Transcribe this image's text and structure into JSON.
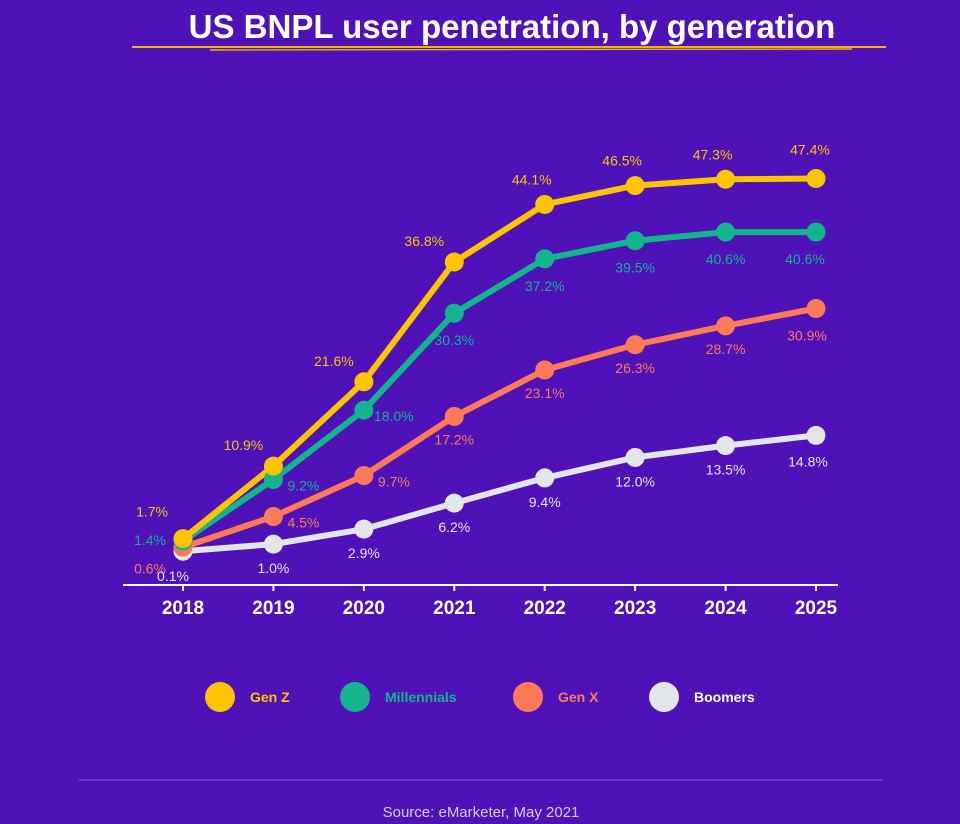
{
  "colors": {
    "background": "#4e12b8",
    "title_underline": "#f5b400",
    "axis": "#ffffff",
    "divider": "#7f5ad0"
  },
  "chart_data": {
    "type": "line",
    "title": "US BNPL user penetration, by generation",
    "x": [
      "2018",
      "2019",
      "2020",
      "2021",
      "2022",
      "2023",
      "2024",
      "2025"
    ],
    "ylim": [
      0,
      50
    ],
    "grid": false,
    "legend_position": "bottom",
    "series": [
      {
        "name": "Gen Z",
        "color": "#ffc400",
        "values": [
          1.7,
          10.9,
          21.6,
          36.8,
          44.1,
          46.5,
          47.3,
          47.4
        ],
        "labels": [
          "1.7%",
          "10.9%",
          "21.6%",
          "36.8%",
          "44.1%",
          "46.5%",
          "47.3%",
          "47.4%"
        ]
      },
      {
        "name": "Millennials",
        "color": "#12b58c",
        "values": [
          1.4,
          9.2,
          18.0,
          30.3,
          37.2,
          39.5,
          40.6,
          40.6
        ],
        "labels": [
          "1.4%",
          "9.2%",
          "18.0%",
          "30.3%",
          "37.2%",
          "39.5%",
          "40.6%",
          "40.6%"
        ]
      },
      {
        "name": "Gen X",
        "color": "#ff7b57",
        "values": [
          0.6,
          4.5,
          9.7,
          17.2,
          23.1,
          26.3,
          28.7,
          30.9
        ],
        "labels": [
          "0.6%",
          "4.5%",
          "9.7%",
          "17.2%",
          "23.1%",
          "26.3%",
          "28.7%",
          "30.9%"
        ]
      },
      {
        "name": "Boomers",
        "color": "#e3e6e8",
        "values": [
          0.1,
          1.0,
          2.9,
          6.2,
          9.4,
          12.0,
          13.5,
          14.8
        ],
        "labels": [
          "0.1%",
          "1.0%",
          "2.9%",
          "6.2%",
          "9.4%",
          "12.0%",
          "13.5%",
          "14.8%"
        ]
      }
    ]
  },
  "source": "Source: eMarketer, May 2021"
}
